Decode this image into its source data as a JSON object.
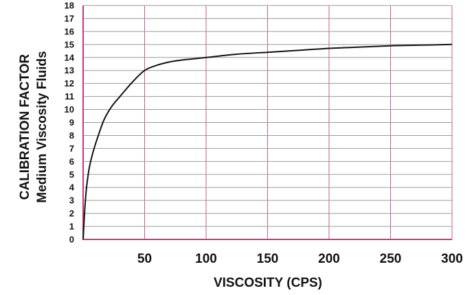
{
  "chart_data": {
    "type": "line",
    "title": "",
    "xlabel": "VISCOSITY (CPS)",
    "ylabel": [
      "CALIBRATION FACTOR",
      "Medium Viscosity Fluids"
    ],
    "xlim": [
      0,
      300
    ],
    "ylim": [
      0,
      18
    ],
    "x_ticks": [
      50,
      100,
      150,
      200,
      250,
      300
    ],
    "y_ticks": [
      0,
      1,
      2,
      3,
      4,
      5,
      6,
      7,
      8,
      9,
      10,
      11,
      12,
      13,
      14,
      15,
      16,
      17,
      18
    ],
    "grid": true,
    "colors": {
      "grid_vertical": "#c9598e",
      "grid_horizontal": "#999999",
      "axis": "#c2387a",
      "line": "#111111"
    },
    "series": [
      {
        "x": [
          0,
          1,
          2,
          3,
          5,
          8,
          12,
          17,
          23,
          30,
          40,
          50,
          60,
          70,
          80,
          90,
          100,
          125,
          150,
          175,
          200,
          225,
          250,
          275,
          300
        ],
        "y": [
          0,
          1.8,
          3.2,
          4.2,
          5.5,
          6.7,
          7.9,
          9.2,
          10.2,
          11.0,
          12.1,
          13.0,
          13.4,
          13.65,
          13.8,
          13.9,
          14.0,
          14.25,
          14.4,
          14.55,
          14.7,
          14.8,
          14.9,
          14.95,
          15.0
        ]
      }
    ]
  }
}
